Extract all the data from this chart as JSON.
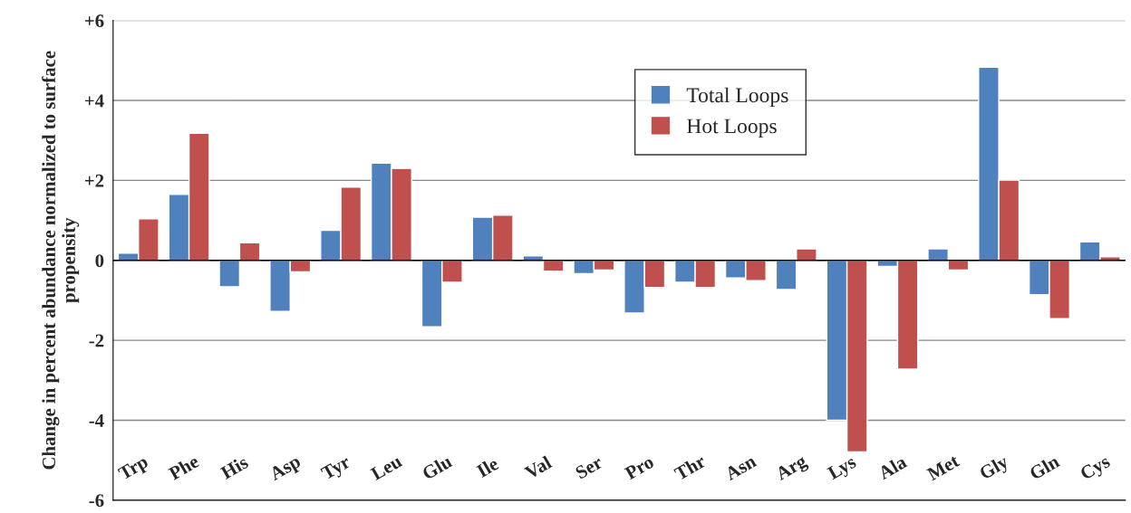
{
  "chart_data": {
    "type": "bar",
    "ylabel": "Change in percent abundance normalized to surface propensity",
    "categories": [
      "Trp",
      "Phe",
      "His",
      "Asp",
      "Tyr",
      "Leu",
      "Glu",
      "Ile",
      "Val",
      "Ser",
      "Pro",
      "Thr",
      "Asn",
      "Arg",
      "Lys",
      "Ala",
      "Met",
      "Gly",
      "Gln",
      "Cys"
    ],
    "series": [
      {
        "name": "Total Loops",
        "color": "#4f81bd",
        "values": [
          0.18,
          1.65,
          -0.66,
          -1.28,
          0.75,
          2.43,
          -1.66,
          1.08,
          0.11,
          -0.33,
          -1.32,
          -0.55,
          -0.44,
          -0.73,
          -4.0,
          -0.15,
          0.29,
          4.83,
          -0.86,
          0.46
        ]
      },
      {
        "name": "Hot Loops",
        "color": "#c0504d",
        "values": [
          1.04,
          3.18,
          0.44,
          -0.29,
          1.83,
          2.3,
          -0.55,
          1.13,
          -0.27,
          -0.24,
          -0.68,
          -0.68,
          -0.51,
          0.29,
          -4.79,
          -2.72,
          -0.24,
          2.01,
          -1.46,
          0.09
        ]
      }
    ],
    "ylim": [
      -6,
      6
    ],
    "yticks": [
      {
        "value": -6,
        "label": "-6"
      },
      {
        "value": -4,
        "label": "-4"
      },
      {
        "value": -2,
        "label": "-2"
      },
      0,
      {
        "value": 2,
        "label": "+2"
      },
      {
        "value": 4,
        "label": "+4"
      },
      {
        "value": 6,
        "label": "+6"
      }
    ],
    "grid": "y",
    "legend": "top"
  }
}
